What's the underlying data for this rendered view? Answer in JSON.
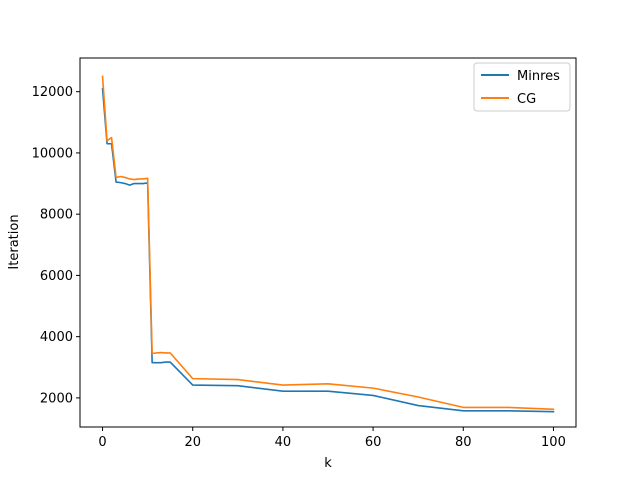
{
  "chart_data": {
    "type": "line",
    "xlabel": "k",
    "ylabel": "Iteration",
    "xlim": [
      -5,
      105
    ],
    "ylim": [
      1050,
      13100
    ],
    "xticks": [
      0,
      20,
      40,
      60,
      80,
      100
    ],
    "yticks": [
      2000,
      4000,
      6000,
      8000,
      10000,
      12000
    ],
    "grid": false,
    "legend_position": "top-right",
    "series": [
      {
        "name": "Minres",
        "color": "#1f77b4",
        "x": [
          0,
          1,
          2,
          3,
          4,
          5,
          6,
          7,
          8,
          9,
          10,
          11,
          12,
          13,
          14,
          15,
          20,
          30,
          40,
          50,
          60,
          70,
          80,
          90,
          100
        ],
        "y": [
          12100,
          10300,
          10300,
          9050,
          9030,
          9000,
          8950,
          9000,
          9000,
          9000,
          9020,
          3150,
          3150,
          3150,
          3170,
          3170,
          2420,
          2400,
          2220,
          2220,
          2080,
          1750,
          1580,
          1580,
          1550
        ]
      },
      {
        "name": "CG",
        "color": "#ff7f0e",
        "x": [
          0,
          1,
          2,
          3,
          4,
          5,
          6,
          7,
          8,
          9,
          10,
          11,
          12,
          13,
          14,
          15,
          20,
          30,
          40,
          50,
          60,
          70,
          80,
          90,
          100
        ],
        "y": [
          12500,
          10400,
          10500,
          9200,
          9230,
          9200,
          9150,
          9130,
          9150,
          9150,
          9170,
          3450,
          3470,
          3480,
          3470,
          3470,
          2630,
          2600,
          2420,
          2460,
          2320,
          2030,
          1690,
          1690,
          1630
        ]
      }
    ]
  }
}
